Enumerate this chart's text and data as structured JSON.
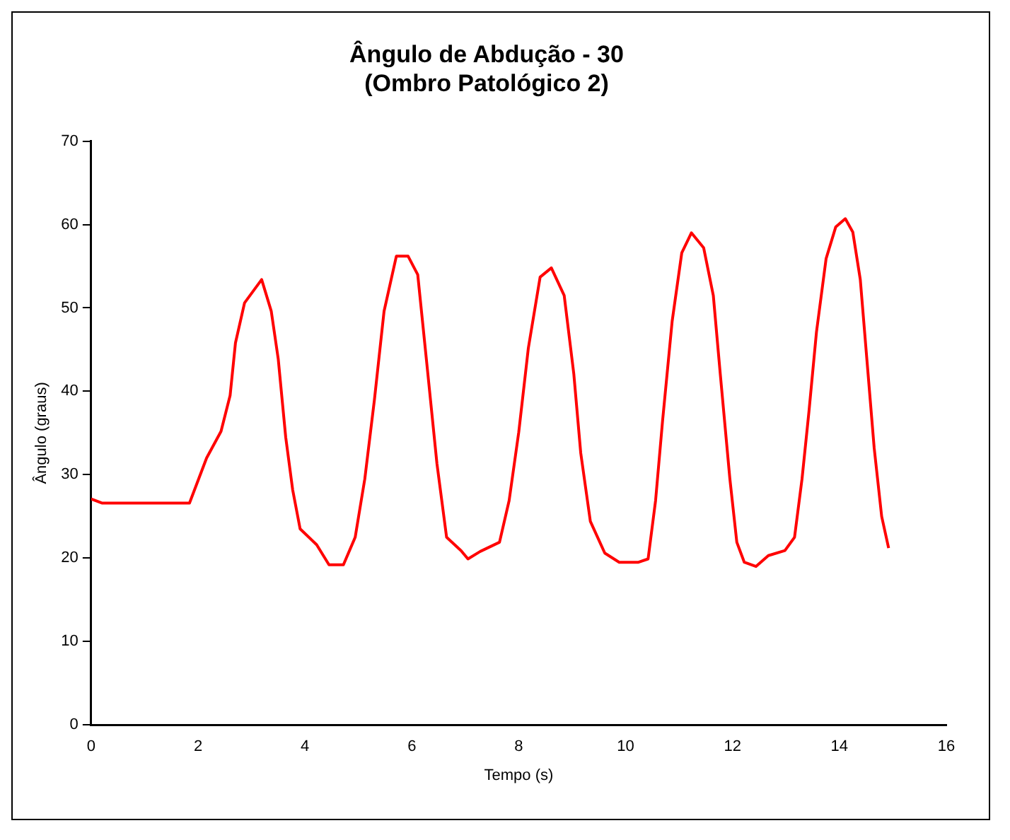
{
  "chart_data": {
    "type": "line",
    "title": [
      "Ângulo de Abdução - 30",
      "(Ombro Patológico 2)"
    ],
    "xlabel": "Tempo (s)",
    "ylabel": "Ângulo (graus)",
    "x": [
      0,
      0.2,
      1.84,
      2.16,
      2.43,
      2.6,
      2.7,
      2.87,
      3.19,
      3.37,
      3.5,
      3.64,
      3.77,
      3.91,
      4.22,
      4.45,
      4.72,
      4.94,
      5.12,
      5.3,
      5.48,
      5.71,
      5.93,
      6.11,
      6.29,
      6.47,
      6.65,
      6.92,
      7.05,
      7.28,
      7.64,
      7.82,
      8.0,
      8.18,
      8.4,
      8.61,
      8.85,
      9.03,
      9.16,
      9.34,
      9.61,
      9.88,
      10.24,
      10.42,
      10.56,
      10.69,
      10.87,
      11.05,
      11.23,
      11.46,
      11.64,
      11.77,
      11.95,
      12.08,
      12.22,
      12.44,
      12.67,
      12.98,
      13.16,
      13.3,
      13.43,
      13.57,
      13.75,
      13.93,
      14.11,
      14.25,
      14.39,
      14.52,
      14.65,
      14.79,
      14.92
    ],
    "series": [
      {
        "color": "#ff0000",
        "values": [
          27.1,
          26.6,
          26.6,
          32.0,
          35.2,
          39.5,
          45.8,
          50.6,
          53.4,
          49.6,
          43.9,
          34.5,
          28.2,
          23.5,
          21.6,
          19.2,
          19.2,
          22.5,
          29.5,
          39.0,
          49.6,
          56.2,
          56.2,
          54.0,
          42.7,
          31.3,
          22.5,
          20.9,
          19.9,
          20.8,
          21.9,
          26.9,
          35.1,
          45.2,
          53.7,
          54.8,
          51.5,
          42.1,
          32.6,
          24.4,
          20.6,
          19.5,
          19.5,
          19.9,
          26.9,
          36.4,
          48.4,
          56.6,
          59.0,
          57.2,
          51.5,
          42.1,
          29.5,
          21.9,
          19.5,
          19.0,
          20.3,
          20.9,
          22.5,
          29.5,
          37.6,
          47.1,
          55.9,
          59.7,
          60.7,
          59.1,
          53.4,
          43.3,
          33.2,
          25.0,
          21.2
        ]
      }
    ],
    "xlim": [
      0,
      16
    ],
    "xticks": [
      0,
      2,
      4,
      6,
      8,
      10,
      12,
      14,
      16
    ],
    "ylim": [
      0,
      70
    ],
    "yticks": [
      0,
      10,
      20,
      30,
      40,
      50,
      60,
      70
    ],
    "grid": false,
    "legend": false,
    "marker": "none",
    "line_style": "solid"
  }
}
